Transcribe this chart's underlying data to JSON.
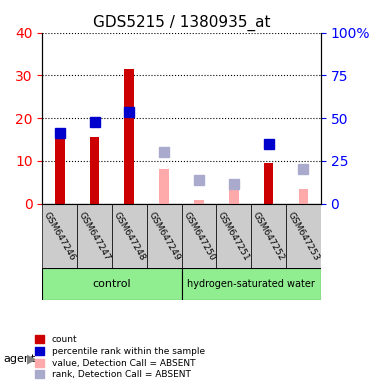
{
  "title": "GDS5215 / 1380935_at",
  "samples": [
    "GSM647246",
    "GSM647247",
    "GSM647248",
    "GSM647249",
    "GSM647250",
    "GSM647251",
    "GSM647252",
    "GSM647253"
  ],
  "groups": [
    {
      "name": "control",
      "color": "#90ee90",
      "samples": [
        0,
        1,
        2,
        3
      ]
    },
    {
      "name": "hydrogen-saturated water",
      "color": "#90ee90",
      "samples": [
        4,
        5,
        6,
        7
      ]
    }
  ],
  "count_values": [
    16.5,
    15.5,
    31.5,
    null,
    null,
    null,
    9.5,
    null
  ],
  "rank_values": [
    16.5,
    19.0,
    21.5,
    null,
    null,
    null,
    14.0,
    null
  ],
  "absent_value": [
    null,
    null,
    null,
    8.0,
    0.8,
    5.0,
    null,
    3.5
  ],
  "absent_rank": [
    null,
    null,
    null,
    12.0,
    5.5,
    4.5,
    null,
    8.0
  ],
  "absent_rank_right": [
    null,
    null,
    null,
    30.0,
    13.75,
    11.25,
    null,
    20.0
  ],
  "ylim_left": [
    0,
    40
  ],
  "ylim_right": [
    0,
    100
  ],
  "yticks_left": [
    0,
    10,
    20,
    30,
    40
  ],
  "yticks_right": [
    0,
    25,
    50,
    75,
    100
  ],
  "yticklabels_right": [
    "0",
    "25",
    "50",
    "75",
    "100%"
  ],
  "bar_color_count": "#cc0000",
  "bar_color_rank": "#0000cc",
  "bar_color_absent_value": "#ffaaaa",
  "bar_color_absent_rank": "#aaaacc",
  "grid_color": "black",
  "bg_plot": "#ffffff",
  "bg_xticklabel": "#cccccc",
  "agent_label": "agent",
  "agent_arrow": true,
  "legend_items": [
    {
      "label": "count",
      "color": "#cc0000",
      "marker": "s"
    },
    {
      "label": "percentile rank within the sample",
      "color": "#0000cc",
      "marker": "s"
    },
    {
      "label": "value, Detection Call = ABSENT",
      "color": "#ffaaaa",
      "marker": "s"
    },
    {
      "label": "rank, Detection Call = ABSENT",
      "color": "#aaaacc",
      "marker": "s"
    }
  ],
  "bar_width": 0.35,
  "marker_size": 7
}
